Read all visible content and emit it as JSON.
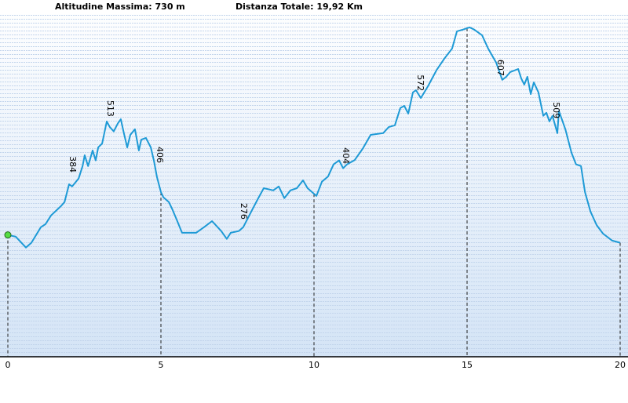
{
  "chart_data": {
    "type": "line",
    "max_altitude": "Altitudine Massima: 730 m",
    "total_distance": "Distanza Totale: 19,92 Km",
    "color": "#1e9ad6",
    "start_marker_color": "#55dd44",
    "xlim": [
      0,
      20
    ],
    "xticks": [
      0,
      5,
      10,
      15,
      20
    ],
    "ylim": [
      -30,
      757
    ],
    "x": [
      0.0,
      0.26,
      0.59,
      0.77,
      1.08,
      1.23,
      1.41,
      1.74,
      1.85,
      2.0,
      2.1,
      2.31,
      2.44,
      2.51,
      2.62,
      2.77,
      2.87,
      2.95,
      3.08,
      3.23,
      3.33,
      3.46,
      3.59,
      3.69,
      3.79,
      3.9,
      4.0,
      4.15,
      4.28,
      4.36,
      4.51,
      4.67,
      4.77,
      4.87,
      5.0,
      5.08,
      5.26,
      5.38,
      5.51,
      5.69,
      6.15,
      6.41,
      6.67,
      6.97,
      7.15,
      7.28,
      7.54,
      7.69,
      7.95,
      8.15,
      8.36,
      8.67,
      8.85,
      9.03,
      9.23,
      9.44,
      9.64,
      9.79,
      10.08,
      10.26,
      10.46,
      10.64,
      10.82,
      10.95,
      11.08,
      11.33,
      11.59,
      11.85,
      12.26,
      12.44,
      12.64,
      12.82,
      12.95,
      13.08,
      13.23,
      13.33,
      13.49,
      13.72,
      14.0,
      14.26,
      14.51,
      14.67,
      14.87,
      15.08,
      15.23,
      15.49,
      15.69,
      15.95,
      16.15,
      16.28,
      16.41,
      16.67,
      16.77,
      16.87,
      16.97,
      17.08,
      17.18,
      17.33,
      17.49,
      17.59,
      17.69,
      17.79,
      17.95,
      18.0,
      18.21,
      18.41,
      18.56,
      18.72,
      18.85,
      19.03,
      19.23,
      19.44,
      19.74,
      20.0
    ],
    "values": [
      251,
      247,
      222,
      233,
      269,
      276,
      296,
      318,
      327,
      368,
      363,
      381,
      410,
      435,
      410,
      446,
      423,
      453,
      462,
      513,
      500,
      490,
      508,
      518,
      486,
      453,
      482,
      495,
      446,
      471,
      475,
      453,
      423,
      385,
      350,
      338,
      327,
      309,
      287,
      256,
      256,
      269,
      283,
      260,
      242,
      256,
      260,
      269,
      305,
      332,
      359,
      354,
      363,
      336,
      354,
      359,
      377,
      359,
      341,
      374,
      386,
      414,
      423,
      405,
      414,
      424,
      450,
      482,
      486,
      500,
      504,
      544,
      549,
      531,
      580,
      585,
      567,
      594,
      631,
      658,
      681,
      721,
      725,
      730,
      725,
      712,
      681,
      649,
      609,
      616,
      627,
      634,
      612,
      598,
      616,
      576,
      603,
      580,
      526,
      533,
      513,
      526,
      486,
      537,
      495,
      441,
      414,
      410,
      350,
      305,
      274,
      254,
      238,
      233
    ],
    "annotations": {
      "x": [
        2.1,
        3.33,
        4.95,
        7.69,
        11.03,
        13.46,
        16.08,
        17.9
      ],
      "values": [
        384,
        513,
        406,
        276,
        404,
        572,
        607,
        509
      ]
    }
  }
}
